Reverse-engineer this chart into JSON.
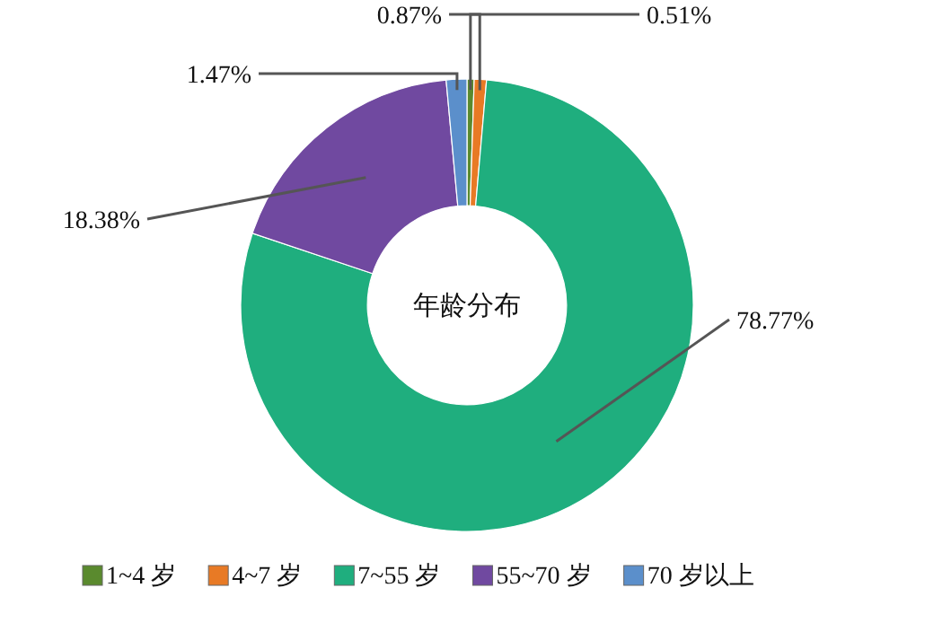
{
  "chart_data": {
    "type": "donut",
    "title": "年龄分布",
    "categories": [
      "1~4 岁",
      "4~7 岁",
      "7~55 岁",
      "55~70 岁",
      "70 岁以上"
    ],
    "values": [
      0.51,
      0.87,
      78.77,
      18.38,
      1.47
    ],
    "colors": [
      "#5a8a2e",
      "#e87a25",
      "#1fae7e",
      "#7049a0",
      "#5b8fcb"
    ],
    "value_labels": [
      "0.51%",
      "0.87%",
      "78.77%",
      "18.38%",
      "1.47%"
    ],
    "legend": "bottom"
  }
}
